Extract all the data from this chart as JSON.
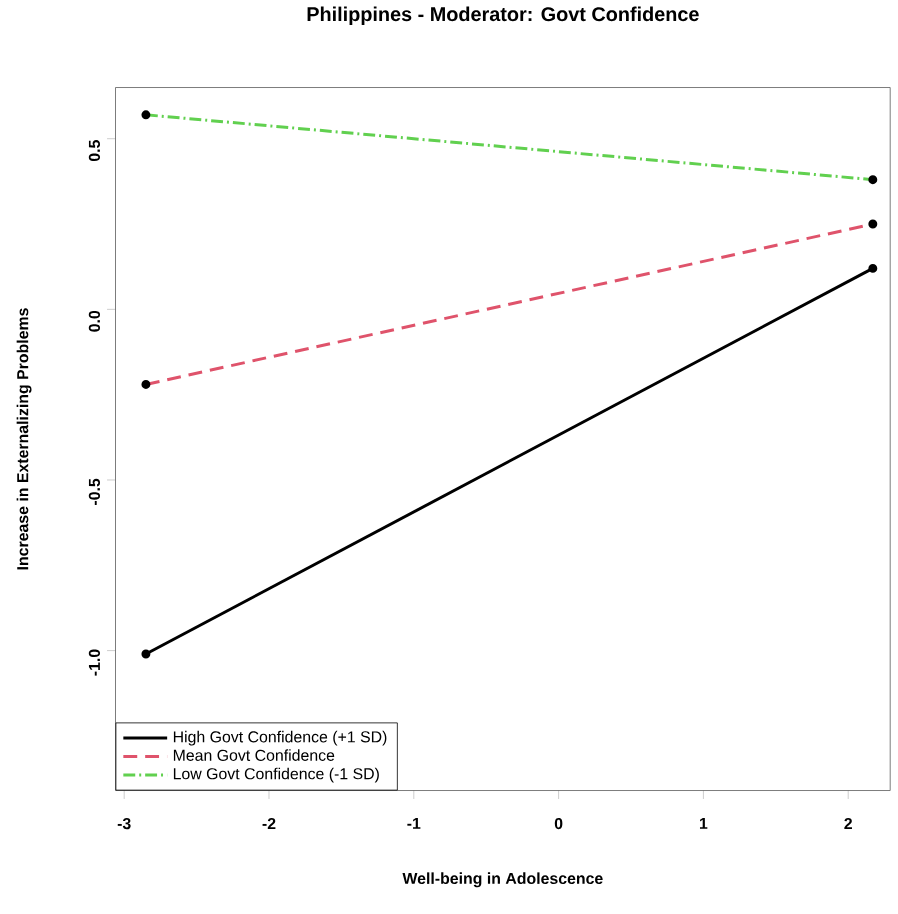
{
  "chart_data": {
    "type": "line",
    "title": "Philippines - Moderator: Govt Confidence",
    "xlabel": "Well-being in Adolescence",
    "ylabel": "Increase in Externalizing Problems",
    "x": [
      -2.85,
      2.17
    ],
    "series": [
      {
        "name": "High Govt Confidence (+1 SD)",
        "color": "#000000",
        "values": [
          -1.01,
          0.12
        ],
        "line_style": "solid"
      },
      {
        "name": "Mean Govt Confidence",
        "color": "#df536b",
        "values": [
          -0.22,
          0.25
        ],
        "line_style": "dashed"
      },
      {
        "name": "Low Govt Confidence (-1 SD)",
        "color": "#61d04f",
        "values": [
          0.57,
          0.38
        ],
        "line_style": "dashed"
      }
    ],
    "xlim": [
      -3.06,
      2.29
    ],
    "ylim": [
      -1.41,
      0.65
    ],
    "xticks": [
      -3,
      -2,
      -1,
      0,
      1,
      2
    ],
    "yticks": [
      {
        "value": -1,
        "label": "-1.0"
      },
      {
        "value": -0.5,
        "label": "-0.5"
      },
      {
        "value": 0,
        "label": "0.0"
      },
      {
        "value": 0.5,
        "label": "0.5"
      }
    ],
    "marker": "circle",
    "grid": false,
    "legend": "bottom left"
  }
}
